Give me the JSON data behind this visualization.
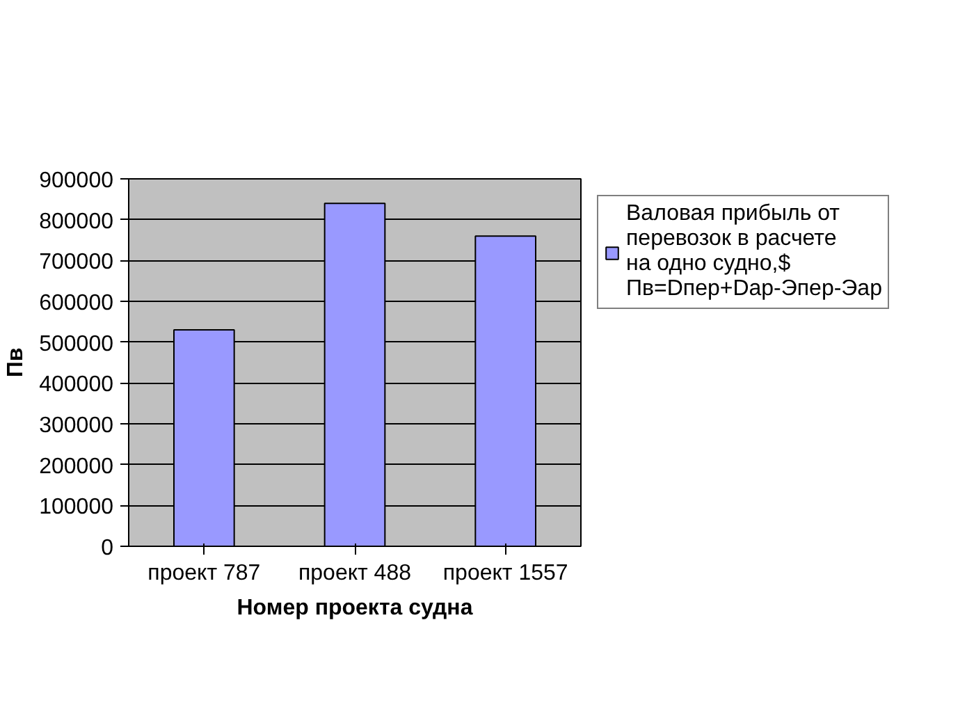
{
  "chart_data": {
    "type": "bar",
    "xlabel": "Номер проекта судна",
    "ylabel": "Пв",
    "categories": [
      "проект 787",
      "проект 488",
      "проект 1557"
    ],
    "series": [
      {
        "name": "Валовая прибыль от перевозок в расчете на одно судно,$ Пв=Dпер+Dар-Эпер-Эар",
        "color": "#9999ff",
        "values": [
          530000,
          840000,
          760000
        ]
      }
    ],
    "ylim": [
      0,
      900000
    ],
    "yticks": [
      0,
      100000,
      200000,
      300000,
      400000,
      500000,
      600000,
      700000,
      800000,
      900000
    ],
    "grid": "y",
    "legend": "right"
  }
}
